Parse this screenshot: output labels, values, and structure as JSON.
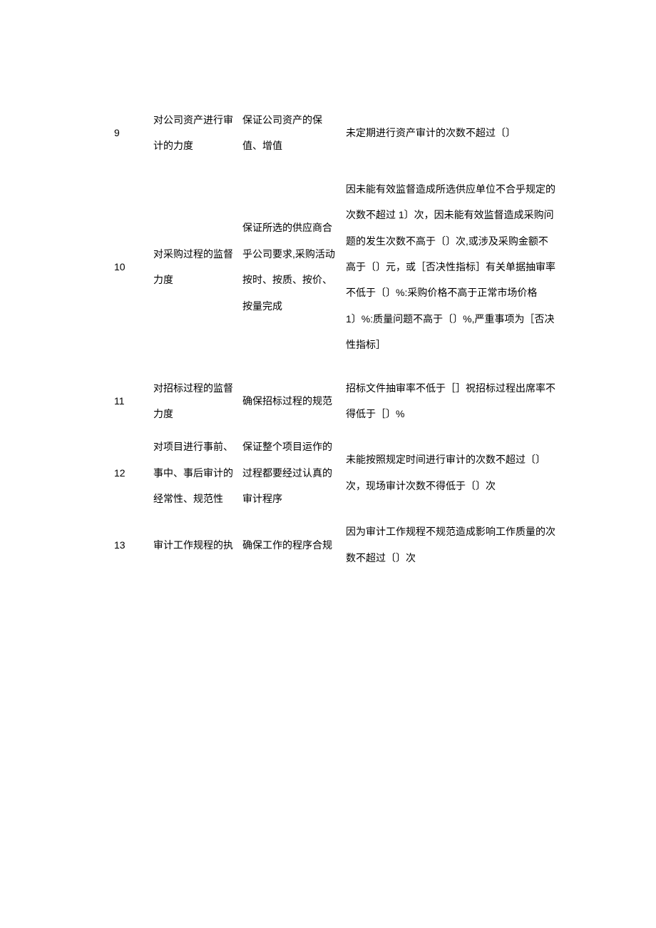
{
  "rows": [
    {
      "num": "9",
      "c2": "对公司资产进行审计的力度",
      "c3": "保证公司资产的保值、增值",
      "c4": "未定期进行资产审计的次数不超过〔〕"
    },
    {
      "num": "10",
      "c2": "对采购过程的监督力度",
      "c3": "保证所选的供应商合乎公司要求,采购活动按时、按质、按价、按量完成",
      "c4": "因未能有效监督造成所选供应单位不合乎规定的次数不超过 1〕次，因未能有效监督造成采购问题的发生次数不高于〔〕次,或涉及采购金额不高于〔〕元，或［否决性指标］有关单据抽审率不低于〔〕%:采购价格不高于正常市场价格 1〕%:质量问题不高于〔〕%,严重事项为［否决性指标］"
    },
    {
      "num": "11",
      "c2": "对招标过程的监督力度",
      "c3": "确保招标过程的规范",
      "c4": "招标文件抽审率不低于［］祝招标过程出席率不得低于［〕%"
    },
    {
      "num": "12",
      "c2": "对项目进行事前、事中、事后审计的经常性、规范性",
      "c3": "保证整个项目运作的过程都要经过认真的审计程序",
      "c4": "未能按照规定时间进行审计的次数不超过〔〕次，现场审计次数不得低于〔〕次"
    },
    {
      "num": "13",
      "c2": "审计工作规程的执",
      "c3": "确保工作的程序合规",
      "c4": "因为审计工作规程不规范造成影响工作质量的次数不超过〔〕次"
    }
  ]
}
